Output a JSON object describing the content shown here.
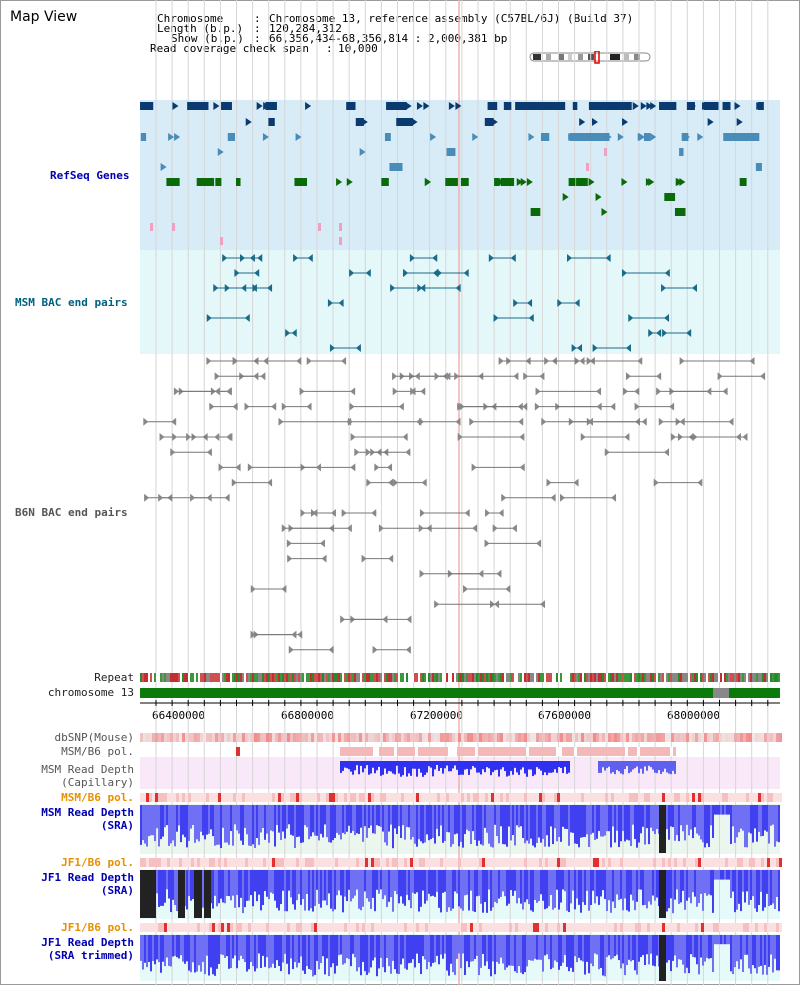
{
  "panel_title": "Map View",
  "info": {
    "chromosome_label": "Chromosome",
    "chromosome_value": "Chromosome 13, reference assembly (C57BL/6J) (Build 37)",
    "length_label": "Length (b.p.)",
    "length_value": "120,284,312",
    "show_label": "Show (b.p.)",
    "show_value": "66,356,434-68,356,814 : 2,000,381 bp",
    "coverage_label": "Read coverage check span",
    "coverage_value": "10,000"
  },
  "tracks": {
    "refseq": "RefSeq Genes",
    "msm_bac": "MSM BAC end pairs",
    "b6n_bac": "B6N BAC end pairs",
    "repeat": "Repeat",
    "chromosome": "chromosome 13",
    "dbsnp": "dbSNP(Mouse)",
    "msm_b6_pol_1": "MSM/B6 pol.",
    "msm_read_depth_cap_1": "MSM Read Depth",
    "msm_read_depth_cap_2": "(Capillary)",
    "msm_b6_pol_2": "MSM/B6 pol.",
    "msm_read_depth_sra_1": "MSM Read Depth",
    "msm_read_depth_sra_2": "(SRA)",
    "jf1_b6_pol_1": "JF1/B6 pol.",
    "jf1_read_depth_sra_1": "JF1 Read Depth",
    "jf1_read_depth_sra_2": "(SRA)",
    "jf1_b6_pol_2": "JF1/B6 pol.",
    "jf1_read_depth_trim_1": "JF1 Read Depth",
    "jf1_read_depth_trim_2": "(SRA trimmed)"
  },
  "axis_ticks": [
    "66400000",
    "66800000",
    "67200000",
    "67600000",
    "68000000"
  ],
  "colors": {
    "refseq_bg": "#d8ecf8",
    "msm_bg": "#e4f8fa",
    "gene_dark": "#0a3a70",
    "gene_mid": "#4a8cb8",
    "gene_green": "#0a6a0a",
    "chrom_green": "#0a7a0a",
    "depth_blue": "#3030f0",
    "pol_red": "#e03030"
  }
}
